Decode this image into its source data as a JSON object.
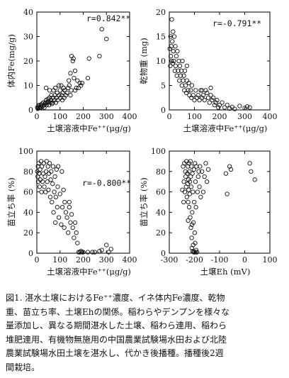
{
  "chart_data": [
    {
      "type": "scatter",
      "panel": "top-left",
      "xlabel": "土壌溶液中Fe⁺⁺(μg/g)",
      "ylabel": "体内Fe(mg/g)",
      "xlim": [
        0,
        400
      ],
      "ylim": [
        0,
        40
      ],
      "xticks": [
        "0",
        "100",
        "200",
        "300",
        "400"
      ],
      "yticks": [
        "0",
        "10",
        "20",
        "30",
        "40"
      ],
      "annotation": "r=0.842**",
      "points": [
        [
          2,
          1
        ],
        [
          4,
          0.5
        ],
        [
          6,
          1.5
        ],
        [
          8,
          1
        ],
        [
          10,
          2
        ],
        [
          12,
          0.8
        ],
        [
          15,
          1.2
        ],
        [
          18,
          2
        ],
        [
          20,
          1
        ],
        [
          22,
          2.5
        ],
        [
          25,
          1.5
        ],
        [
          28,
          3
        ],
        [
          30,
          2
        ],
        [
          32,
          1
        ],
        [
          35,
          2.5
        ],
        [
          38,
          3
        ],
        [
          40,
          4
        ],
        [
          42,
          2
        ],
        [
          45,
          3
        ],
        [
          48,
          4.5
        ],
        [
          50,
          3.5
        ],
        [
          52,
          2
        ],
        [
          55,
          5
        ],
        [
          58,
          3
        ],
        [
          60,
          4
        ],
        [
          62,
          6
        ],
        [
          65,
          2.5
        ],
        [
          68,
          3
        ],
        [
          70,
          5
        ],
        [
          72,
          8
        ],
        [
          75,
          4
        ],
        [
          78,
          6
        ],
        [
          80,
          9
        ],
        [
          82,
          3
        ],
        [
          85,
          5
        ],
        [
          88,
          7
        ],
        [
          90,
          4
        ],
        [
          95,
          6
        ],
        [
          100,
          8
        ],
        [
          102,
          5
        ],
        [
          105,
          10
        ],
        [
          108,
          6
        ],
        [
          110,
          4
        ],
        [
          112,
          7
        ],
        [
          115,
          9
        ],
        [
          118,
          5
        ],
        [
          120,
          8
        ],
        [
          125,
          6
        ],
        [
          130,
          7
        ],
        [
          135,
          9
        ],
        [
          138,
          12
        ],
        [
          140,
          10
        ],
        [
          145,
          15
        ],
        [
          148,
          8
        ],
        [
          150,
          22
        ],
        [
          155,
          20
        ],
        [
          158,
          21
        ],
        [
          160,
          13
        ],
        [
          165,
          16
        ],
        [
          170,
          9
        ],
        [
          175,
          12
        ],
        [
          180,
          9
        ],
        [
          190,
          10
        ],
        [
          195,
          11
        ],
        [
          220,
          13
        ],
        [
          225,
          21
        ],
        [
          270,
          22
        ],
        [
          280,
          33
        ],
        [
          300,
          29
        ],
        [
          40,
          9
        ],
        [
          55,
          8
        ],
        [
          95,
          10
        ],
        [
          145,
          6
        ],
        [
          165,
          8
        ],
        [
          185,
          11
        ]
      ]
    },
    {
      "type": "scatter",
      "panel": "top-right",
      "xlabel": "土壌溶液中Fe⁺⁺(μg/g)",
      "ylabel": "乾物重 (mg)",
      "xlim": [
        0,
        400
      ],
      "ylim": [
        0,
        20
      ],
      "xticks": [
        "0",
        "100",
        "200",
        "300",
        "400"
      ],
      "yticks": [
        "0",
        "5",
        "10",
        "15",
        "20"
      ],
      "annotation": "r=-0.791**",
      "points": [
        [
          2,
          12.5
        ],
        [
          4,
          9
        ],
        [
          5,
          15
        ],
        [
          6,
          11
        ],
        [
          8,
          13
        ],
        [
          9,
          10
        ],
        [
          10,
          18.5
        ],
        [
          12,
          14
        ],
        [
          14,
          9.5
        ],
        [
          15,
          16
        ],
        [
          16,
          12
        ],
        [
          18,
          10
        ],
        [
          20,
          15
        ],
        [
          22,
          8
        ],
        [
          24,
          13
        ],
        [
          25,
          9
        ],
        [
          28,
          11
        ],
        [
          30,
          7
        ],
        [
          32,
          12
        ],
        [
          35,
          8
        ],
        [
          38,
          10
        ],
        [
          40,
          6
        ],
        [
          42,
          9
        ],
        [
          45,
          7
        ],
        [
          48,
          8
        ],
        [
          50,
          5
        ],
        [
          52,
          10
        ],
        [
          55,
          6
        ],
        [
          58,
          7
        ],
        [
          60,
          4
        ],
        [
          62,
          8
        ],
        [
          65,
          5
        ],
        [
          68,
          3.5
        ],
        [
          70,
          6
        ],
        [
          75,
          4
        ],
        [
          78,
          5.5
        ],
        [
          80,
          3
        ],
        [
          85,
          4
        ],
        [
          88,
          2.5
        ],
        [
          90,
          5
        ],
        [
          95,
          3
        ],
        [
          100,
          2
        ],
        [
          105,
          4
        ],
        [
          110,
          2.5
        ],
        [
          115,
          3
        ],
        [
          120,
          2
        ],
        [
          125,
          4
        ],
        [
          130,
          2.5
        ],
        [
          135,
          3
        ],
        [
          140,
          2
        ],
        [
          145,
          4
        ],
        [
          150,
          3.5
        ],
        [
          155,
          2.5
        ],
        [
          160,
          1.5
        ],
        [
          165,
          3
        ],
        [
          170,
          2
        ],
        [
          175,
          2.5
        ],
        [
          180,
          1
        ],
        [
          185,
          1.5
        ],
        [
          190,
          2
        ],
        [
          195,
          0.5
        ],
        [
          200,
          1
        ],
        [
          210,
          1.5
        ],
        [
          220,
          0.5
        ],
        [
          230,
          1
        ],
        [
          240,
          0.3
        ],
        [
          250,
          0.6
        ],
        [
          260,
          0.2
        ],
        [
          280,
          0.8
        ],
        [
          300,
          0.4
        ],
        [
          310,
          0.7
        ],
        [
          320,
          0.5
        ],
        [
          165,
          4.5
        ],
        [
          130,
          4
        ],
        [
          70,
          9
        ]
      ]
    },
    {
      "type": "scatter",
      "panel": "bottom-left",
      "xlabel": "土壌溶液中Fe⁺⁺(μg/g)",
      "ylabel": "苗立ち率 (%)",
      "xlim": [
        0,
        400
      ],
      "ylim": [
        0,
        100
      ],
      "xticks": [
        "0",
        "100",
        "200",
        "300",
        "400"
      ],
      "yticks": [
        "0",
        "20",
        "40",
        "60",
        "80",
        "100"
      ],
      "annotation": "r=-0.800**",
      "points": [
        [
          2,
          80
        ],
        [
          4,
          75
        ],
        [
          5,
          85
        ],
        [
          6,
          70
        ],
        [
          8,
          88
        ],
        [
          10,
          78
        ],
        [
          12,
          65
        ],
        [
          14,
          82
        ],
        [
          15,
          72
        ],
        [
          18,
          90
        ],
        [
          20,
          60
        ],
        [
          22,
          85
        ],
        [
          25,
          70
        ],
        [
          28,
          78
        ],
        [
          30,
          88
        ],
        [
          32,
          65
        ],
        [
          35,
          75
        ],
        [
          38,
          60
        ],
        [
          40,
          80
        ],
        [
          42,
          90
        ],
        [
          45,
          70
        ],
        [
          48,
          85
        ],
        [
          50,
          62
        ],
        [
          52,
          78
        ],
        [
          55,
          88
        ],
        [
          58,
          55
        ],
        [
          60,
          72
        ],
        [
          62,
          80
        ],
        [
          65,
          50
        ],
        [
          68,
          68
        ],
        [
          70,
          85
        ],
        [
          72,
          40
        ],
        [
          75,
          60
        ],
        [
          78,
          75
        ],
        [
          80,
          30
        ],
        [
          82,
          55
        ],
        [
          85,
          82
        ],
        [
          88,
          45
        ],
        [
          90,
          65
        ],
        [
          95,
          35
        ],
        [
          100,
          58
        ],
        [
          105,
          28
        ],
        [
          110,
          45
        ],
        [
          115,
          62
        ],
        [
          118,
          25
        ],
        [
          120,
          50
        ],
        [
          125,
          40
        ],
        [
          130,
          35
        ],
        [
          135,
          20
        ],
        [
          140,
          45
        ],
        [
          145,
          30
        ],
        [
          150,
          38
        ],
        [
          155,
          25
        ],
        [
          160,
          15
        ],
        [
          165,
          30
        ],
        [
          170,
          20
        ],
        [
          175,
          10
        ],
        [
          180,
          1
        ],
        [
          185,
          1
        ],
        [
          190,
          2
        ],
        [
          195,
          1
        ],
        [
          200,
          1
        ],
        [
          220,
          1
        ],
        [
          240,
          1
        ],
        [
          250,
          1
        ],
        [
          270,
          2
        ],
        [
          280,
          3
        ],
        [
          300,
          8
        ],
        [
          310,
          1
        ],
        [
          320,
          4
        ],
        [
          92,
          85
        ],
        [
          108,
          80
        ],
        [
          140,
          50
        ]
      ]
    },
    {
      "type": "scatter",
      "panel": "bottom-right",
      "xlabel": "土壌Eh (mV)",
      "ylabel": "苗立ち率 (%)",
      "xlim": [
        -300,
        100
      ],
      "ylim": [
        0,
        100
      ],
      "xticks": [
        "-300",
        "-200",
        "-100",
        "0",
        "100"
      ],
      "yticks": [
        "0",
        "20",
        "40",
        "60",
        "80",
        "100"
      ],
      "annotation": "",
      "points": [
        [
          -245,
          85
        ],
        [
          -242,
          70
        ],
        [
          -240,
          88
        ],
        [
          -238,
          60
        ],
        [
          -236,
          80
        ],
        [
          -235,
          75
        ],
        [
          -233,
          65
        ],
        [
          -232,
          90
        ],
        [
          -230,
          55
        ],
        [
          -228,
          78
        ],
        [
          -227,
          68
        ],
        [
          -226,
          85
        ],
        [
          -225,
          50
        ],
        [
          -224,
          72
        ],
        [
          -223,
          62
        ],
        [
          -222,
          88
        ],
        [
          -221,
          45
        ],
        [
          -220,
          80
        ],
        [
          -219,
          58
        ],
        [
          -218,
          70
        ],
        [
          -217,
          35
        ],
        [
          -216,
          90
        ],
        [
          -215,
          75
        ],
        [
          -214,
          25
        ],
        [
          -213,
          65
        ],
        [
          -212,
          85
        ],
        [
          -211,
          15
        ],
        [
          -210,
          5
        ],
        [
          -209,
          40
        ],
        [
          -208,
          78
        ],
        [
          -207,
          2
        ],
        [
          -206,
          60
        ],
        [
          -205,
          8
        ],
        [
          -204,
          30
        ],
        [
          -203,
          1
        ],
        [
          -202,
          82
        ],
        [
          -201,
          50
        ],
        [
          -200,
          1
        ],
        [
          -199,
          20
        ],
        [
          -198,
          88
        ],
        [
          -197,
          10
        ],
        [
          -196,
          70
        ],
        [
          -195,
          1
        ],
        [
          -194,
          45
        ],
        [
          -193,
          3
        ],
        [
          -192,
          85
        ],
        [
          -190,
          1
        ],
        [
          -188,
          60
        ],
        [
          -185,
          75
        ],
        [
          -183,
          80
        ],
        [
          -180,
          65
        ],
        [
          -178,
          85
        ],
        [
          -175,
          55
        ],
        [
          -170,
          80
        ],
        [
          -165,
          60
        ],
        [
          -160,
          75
        ],
        [
          -155,
          88
        ],
        [
          -150,
          70
        ],
        [
          -145,
          82
        ],
        [
          -210,
          28
        ],
        [
          -225,
          32
        ],
        [
          -75,
          78
        ],
        [
          -70,
          58
        ],
        [
          -60,
          85
        ],
        [
          -55,
          82
        ],
        [
          20,
          88
        ],
        [
          25,
          80
        ],
        [
          40,
          72
        ],
        [
          -248,
          62
        ],
        [
          -243,
          50
        ]
      ]
    }
  ],
  "caption": {
    "lines": [
      "図1. 湛水土壌におけるFe⁺⁺濃度、イネ体内Fe濃度、乾物",
      "重、苗立ち率、土壌Ehの関係。稲わらやデンプンを様々な",
      "量添加し、異なる期間湛水した土壌、稲わら連用、稲わら",
      "堆肥連用、有機物無施用の中国農業試験場水田および北陸",
      "農業試験場水田土壌を湛水し、代かき後播種。播種後2週",
      "間栽培。"
    ]
  }
}
